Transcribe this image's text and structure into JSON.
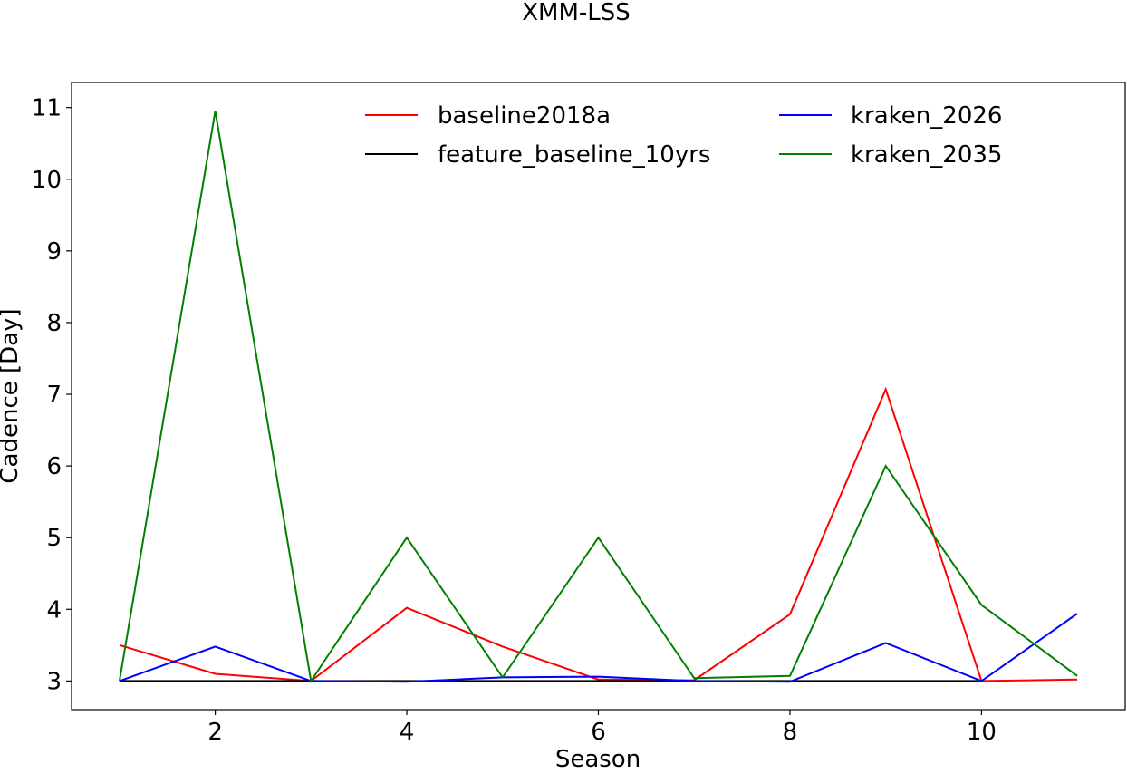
{
  "chart_data": {
    "type": "line",
    "title": "XMM-LSS",
    "xlabel": "Season",
    "ylabel": "Cadence [Day]",
    "xlim": [
      0.5,
      11.5
    ],
    "ylim": [
      2.6,
      11.35
    ],
    "xticks": [
      2,
      4,
      6,
      8,
      10
    ],
    "yticks": [
      3,
      4,
      5,
      6,
      7,
      8,
      9,
      10,
      11
    ],
    "grid": false,
    "legend_placement": "upper center, two columns",
    "series": [
      {
        "name": "baseline2018a",
        "color": "#ff0000",
        "x": [
          1,
          2,
          3,
          4,
          5,
          6,
          7,
          8,
          9,
          10,
          11
        ],
        "values": [
          3.5,
          3.1,
          3.0,
          4.02,
          3.48,
          3.02,
          3.01,
          3.93,
          7.07,
          3.0,
          3.02
        ]
      },
      {
        "name": "feature_baseline_10yrs",
        "color": "#000000",
        "x": [
          1,
          2,
          3,
          4,
          5,
          6,
          7,
          8,
          9,
          10
        ],
        "values": [
          3.0,
          3.0,
          3.0,
          3.0,
          3.0,
          3.0,
          3.0,
          3.0,
          3.0,
          3.0
        ]
      },
      {
        "name": "kraken_2026",
        "color": "#0000ff",
        "x": [
          1,
          2,
          3,
          4,
          5,
          6,
          7,
          8,
          9,
          10,
          11
        ],
        "values": [
          3.0,
          3.48,
          3.0,
          2.99,
          3.05,
          3.06,
          3.0,
          2.99,
          3.53,
          3.0,
          3.94
        ]
      },
      {
        "name": "kraken_2035",
        "color": "#008000",
        "x": [
          1,
          2,
          3,
          4,
          5,
          6,
          7,
          8,
          9,
          10,
          11
        ],
        "values": [
          3.0,
          10.95,
          3.0,
          5.0,
          3.05,
          5.0,
          3.04,
          3.07,
          6.0,
          4.06,
          3.07
        ]
      }
    ]
  }
}
